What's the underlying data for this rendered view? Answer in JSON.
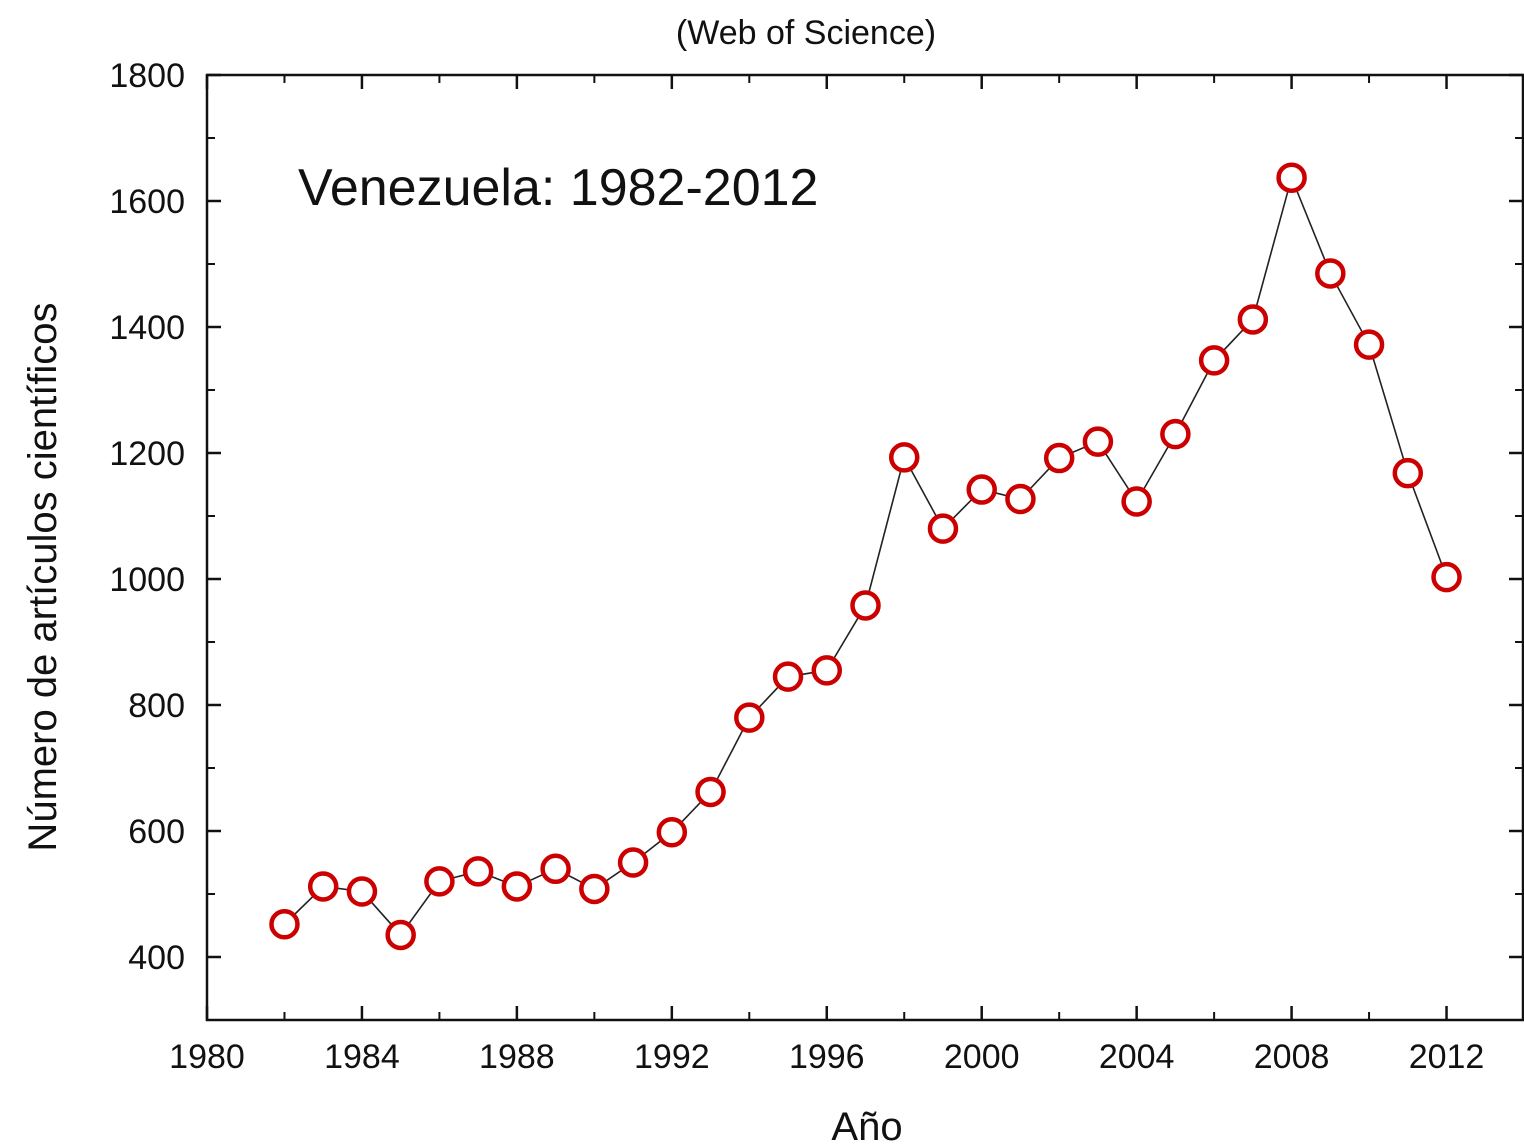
{
  "chart_data": {
    "type": "line",
    "subtitle": "(Web of Science)",
    "annotation": "Venezuela: 1982-2012",
    "xlabel": "Año",
    "ylabel": "Número de artículos científicos",
    "xlim": [
      1980,
      2014
    ],
    "ylim": [
      300,
      1800
    ],
    "xticks": [
      1980,
      1984,
      1988,
      1992,
      1996,
      2000,
      2004,
      2008,
      2012
    ],
    "xtick_labels": [
      "1980",
      "1984",
      "1988",
      "1992",
      "1996",
      "2000",
      "2004",
      "2008",
      "2012"
    ],
    "xminor": [
      1982,
      1986,
      1990,
      1994,
      1998,
      2002,
      2006,
      2010
    ],
    "yticks": [
      400,
      600,
      800,
      1000,
      1200,
      1400,
      1600,
      1800
    ],
    "ytick_labels": [
      "400",
      "600",
      "800",
      "1000",
      "1200",
      "1400",
      "1600",
      "1800"
    ],
    "yminor": [
      300,
      500,
      700,
      900,
      1100,
      1300,
      1500,
      1700
    ],
    "grid": false,
    "marker": "open-circle",
    "colors": {
      "marker": "#cc0000",
      "line": "#222222",
      "axis": "#111111"
    },
    "series": [
      {
        "x": [
          1982,
          1983,
          1984,
          1985,
          1986,
          1987,
          1988,
          1989,
          1990,
          1991,
          1992,
          1993,
          1994,
          1995,
          1996,
          1997,
          1998,
          1999,
          2000,
          2001,
          2002,
          2003,
          2004,
          2005,
          2006,
          2007,
          2008,
          2009,
          2010,
          2011,
          2012
        ],
        "values": [
          452,
          512,
          504,
          435,
          520,
          536,
          512,
          540,
          508,
          550,
          598,
          662,
          780,
          845,
          855,
          958,
          1193,
          1080,
          1142,
          1127,
          1192,
          1218,
          1123,
          1230,
          1347,
          1412,
          1637,
          1485,
          1372,
          1168,
          1003
        ]
      }
    ]
  }
}
